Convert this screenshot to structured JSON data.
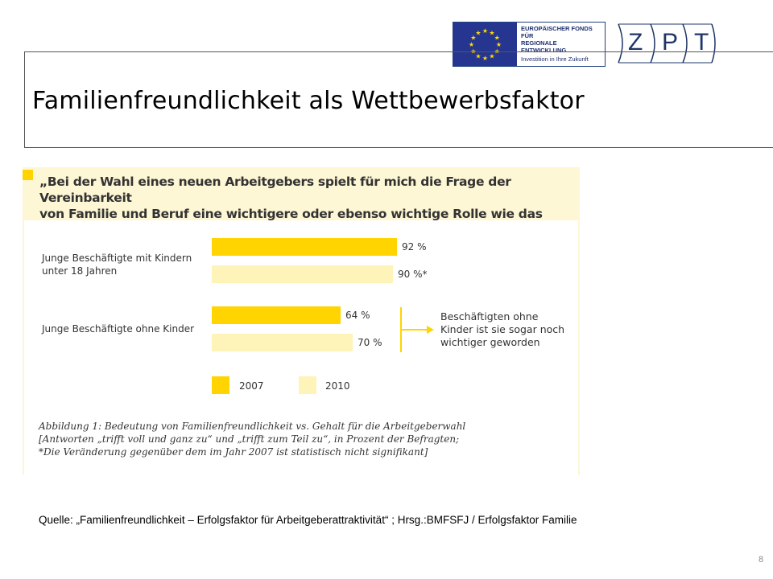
{
  "eu_logo": {
    "line1": "EUROPÄISCHER FONDS FÜR",
    "line2": "REGIONALE ENTWICKLUNG",
    "tagline": "Investition in Ihre Zukunft"
  },
  "zpt_logo": {
    "letters": [
      "Z",
      "P",
      "T"
    ]
  },
  "slide": {
    "title": "Familienfreundlichkeit als Wettbewerbsfaktor",
    "source": "Quelle: „Familienfreundlichkeit – Erfolgsfaktor für Arbeitgeberattraktivität“ ; Hrsg.:BMFSFJ / Erfolgsfaktor Familie",
    "page_number": "8"
  },
  "colors": {
    "bar_2007": "#ffd400",
    "bar_2010": "#fef3b8",
    "figure_bg": "#fef7d5"
  },
  "figure": {
    "quote_line1": "„Bei der Wahl eines neuen Arbeitgebers spielt für mich die Frage der Vereinbarkeit",
    "quote_line2": "von Familie und Beruf eine wichtigere oder ebenso wichtige Rolle wie das Gehalt.“",
    "note_line1": "Beschäftigten ohne",
    "note_line2": "Kinder ist sie sogar noch",
    "note_line3": "wichtiger geworden",
    "caption_line1": "Abbildung 1: Bedeutung von Familienfreundlichkeit vs. Gehalt für die Arbeitgeberwahl",
    "caption_line2": "[Antworten „trifft voll und ganz zu“ und „trifft zum Teil zu“, in Prozent der Befragten;",
    "caption_line3": "*Die Veränderung gegenüber dem im Jahr 2007 ist statistisch nicht signifikant]"
  },
  "chart_data": {
    "type": "bar",
    "orientation": "horizontal",
    "categories": [
      {
        "line1": "Junge Beschäftigte mit Kindern",
        "line2": "unter 18 Jahren"
      },
      {
        "line1": "Junge Beschäftigte ohne Kinder",
        "line2": ""
      }
    ],
    "series": [
      {
        "name": "2007",
        "values": [
          92,
          64
        ],
        "labels": [
          "92 %",
          "64 %"
        ]
      },
      {
        "name": "2010",
        "values": [
          90,
          70
        ],
        "labels": [
          "90 %*",
          "70 %"
        ]
      }
    ],
    "unit": "%",
    "legend": "bottom"
  }
}
